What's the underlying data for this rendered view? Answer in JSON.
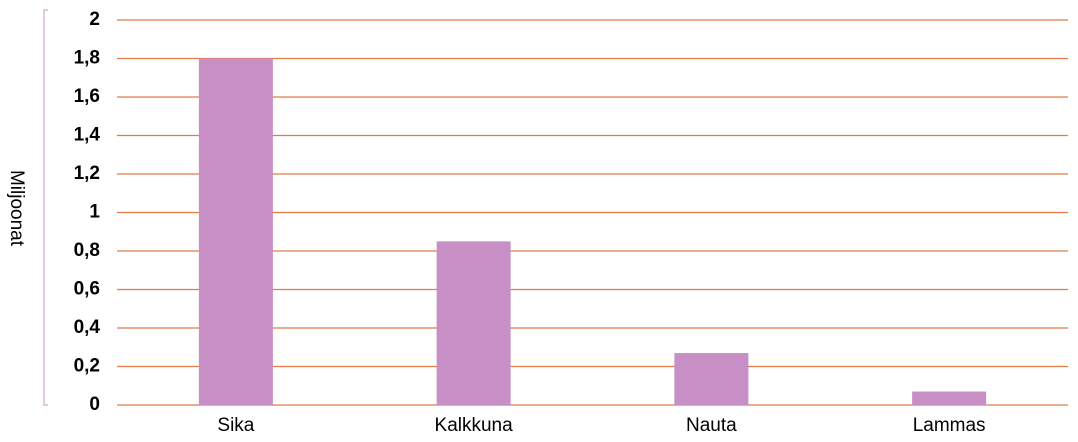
{
  "chart_data": {
    "type": "bar",
    "y_axis_label": "Miljoonat",
    "categories": [
      "Sika",
      "Kalkkuna",
      "Nauta",
      "Lammas"
    ],
    "values": [
      1.8,
      0.85,
      0.27,
      0.07
    ],
    "color": "#c78fc5",
    "grid_color": "#e07b4a",
    "ylim": [
      0,
      2
    ],
    "yticks": [
      0,
      {
        "value": 0.2,
        "label": "0,2"
      },
      {
        "value": 0.4,
        "label": "0,4"
      },
      {
        "value": 0.6,
        "label": "0,6"
      },
      {
        "value": 0.8,
        "label": "0,8"
      },
      1,
      {
        "value": 1.2,
        "label": "1,2"
      },
      {
        "value": 1.4,
        "label": "1,4"
      },
      {
        "value": 1.6,
        "label": "1,6"
      },
      {
        "value": 1.8,
        "label": "1,8"
      },
      2
    ],
    "grid": true
  }
}
